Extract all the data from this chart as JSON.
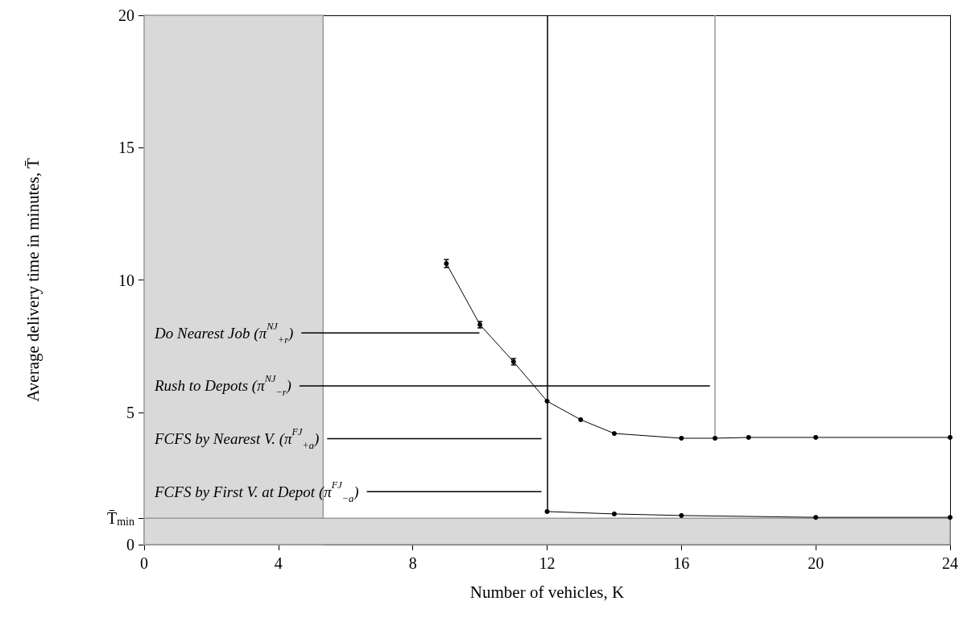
{
  "chart_data": {
    "type": "line",
    "xlabel": "Number of vehicles, K",
    "ylabel": "Average delivery time in minutes, T̄",
    "xlim": [
      0,
      24
    ],
    "xticks": [
      0,
      4,
      8,
      12,
      16,
      20,
      24
    ],
    "ylim": [
      0,
      20
    ],
    "yticks": [
      0,
      {
        "value": 1.0,
        "label": "T̄$_{min}$"
      },
      5,
      10,
      15,
      20
    ],
    "grid": false,
    "marker": "circle",
    "line_style": "solid",
    "series": [
      {
        "color": "#000000",
        "x": [
          9,
          10,
          11,
          12,
          13,
          14,
          16,
          17,
          18,
          20,
          24
        ],
        "values": [
          10.62,
          8.31,
          6.91,
          5.42,
          4.72,
          4.2,
          4.02,
          4.02,
          4.05,
          4.05,
          4.05
        ],
        "errors": [
          0.15,
          0.12,
          0.12,
          null,
          null,
          null,
          null,
          null,
          null,
          null,
          null
        ]
      },
      {
        "color": "#000000",
        "x": [
          12,
          14,
          16,
          20,
          24
        ],
        "values": [
          1.25,
          1.16,
          1.1,
          1.03,
          1.03
        ]
      }
    ],
    "bands": [
      {
        "axis": "x",
        "from": 0,
        "to": 5.33,
        "color": "#d9d9d9"
      },
      {
        "axis": "y",
        "from": 0,
        "to": 1.0,
        "color": "#d9d9d9"
      }
    ],
    "ref_lines": [
      {
        "axis": "x",
        "value": 12,
        "color": "#000000",
        "line_style": "solid"
      },
      {
        "axis": "x",
        "value": 17,
        "color": "#999999",
        "line_style": "solid"
      }
    ],
    "annotations": [
      "Do Nearest Job (π$^{NJ}$$_{+r}$)",
      "Rush to Depots (π$^{NJ}$$_{−r}$)",
      "FCFS by Nearest V. (π$^{FJ}$$_{+a}$)",
      "FCFS by First V. at Depot (π$^{FJ}$$_{−a}$)"
    ]
  }
}
